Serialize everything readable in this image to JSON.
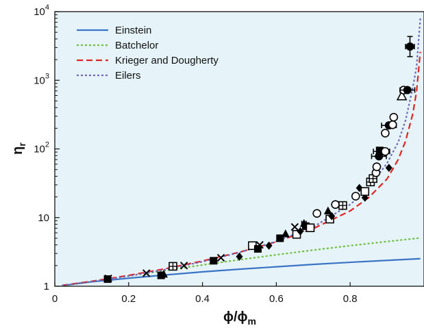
{
  "chart_data": {
    "type": "scatter",
    "xlabel": "ϕ/ϕm",
    "ylabel": "ηr",
    "xlim": [
      0,
      1.0
    ],
    "ylim": [
      1,
      10000
    ],
    "yscale": "log",
    "grid": false,
    "legend_position": "top-left",
    "colors": {
      "background": "#e6f3f8",
      "Einstein": "#3a74c4",
      "Batchelor": "#6cbf3a",
      "Krieger and Dougherty": "#e02424",
      "Eilers": "#6f67b7"
    },
    "x_ticks": [
      "0",
      "0.2",
      "0.4",
      "0.6",
      "0.8"
    ],
    "y_ticks": [
      {
        "base": "1",
        "exp": ""
      },
      {
        "base": "10",
        "exp": ""
      },
      {
        "base": "10",
        "exp": "2"
      },
      {
        "base": "10",
        "exp": "3"
      },
      {
        "base": "10",
        "exp": "4"
      }
    ],
    "series": [
      {
        "name": "Einstein",
        "style": "solid",
        "x": [
          0.02,
          0.1,
          0.2,
          0.3,
          0.4,
          0.5,
          0.6,
          0.7,
          0.8,
          0.9,
          0.99
        ],
        "y": [
          1.02,
          1.16,
          1.31,
          1.46,
          1.62,
          1.77,
          1.92,
          2.08,
          2.23,
          2.38,
          2.52
        ]
      },
      {
        "name": "Batchelor",
        "style": "dotted",
        "x": [
          0.02,
          0.1,
          0.2,
          0.3,
          0.4,
          0.5,
          0.6,
          0.7,
          0.8,
          0.9,
          0.99
        ],
        "y": [
          1.02,
          1.18,
          1.41,
          1.7,
          2.04,
          2.43,
          2.87,
          3.36,
          3.9,
          4.48,
          5.05
        ]
      },
      {
        "name": "Krieger and Dougherty",
        "style": "dashed",
        "x": [
          0.02,
          0.1,
          0.2,
          0.3,
          0.4,
          0.5,
          0.6,
          0.7,
          0.8,
          0.85,
          0.9,
          0.93,
          0.95,
          0.97,
          0.98,
          0.99
        ],
        "y": [
          1.03,
          1.18,
          1.44,
          1.8,
          2.33,
          3.13,
          4.43,
          6.9,
          12.5,
          19.5,
          36.6,
          70,
          130,
          330,
          700,
          2600
        ]
      },
      {
        "name": "Eilers",
        "style": "dotted",
        "x": [
          0.02,
          0.1,
          0.2,
          0.3,
          0.4,
          0.5,
          0.6,
          0.7,
          0.8,
          0.85,
          0.9,
          0.93,
          0.95,
          0.97,
          0.98,
          0.99
        ],
        "y": [
          1.03,
          1.17,
          1.41,
          1.75,
          2.28,
          3.1,
          4.5,
          7.3,
          15.5,
          27,
          62,
          125,
          260,
          800,
          1600,
          8000
        ]
      }
    ],
    "points": [
      {
        "marker": "filled-square",
        "x": 0.143,
        "y": 1.27
      },
      {
        "marker": "cross",
        "x": 0.145,
        "y": 1.3
      },
      {
        "marker": "cross",
        "x": 0.248,
        "y": 1.55
      },
      {
        "marker": "filled-square",
        "x": 0.288,
        "y": 1.44
      },
      {
        "marker": "filled-triangle",
        "x": 0.295,
        "y": 1.5
      },
      {
        "marker": "square-cross",
        "x": 0.32,
        "y": 1.95
      },
      {
        "marker": "cross",
        "x": 0.35,
        "y": 2.0
      },
      {
        "marker": "filled-square",
        "x": 0.43,
        "y": 2.35
      },
      {
        "marker": "cross",
        "x": 0.45,
        "y": 2.6
      },
      {
        "marker": "filled-diamond",
        "x": 0.5,
        "y": 2.7
      },
      {
        "marker": "open-square",
        "x": 0.535,
        "y": 3.9
      },
      {
        "marker": "filled-square",
        "x": 0.55,
        "y": 3.5
      },
      {
        "marker": "cross",
        "x": 0.555,
        "y": 4.0
      },
      {
        "marker": "filled-diamond",
        "x": 0.58,
        "y": 3.9
      },
      {
        "marker": "filled-square",
        "x": 0.61,
        "y": 5.0
      },
      {
        "marker": "filled-triangle",
        "x": 0.625,
        "y": 5.8
      },
      {
        "marker": "cross",
        "x": 0.65,
        "y": 7.3
      },
      {
        "marker": "open-square",
        "x": 0.655,
        "y": 5.7
      },
      {
        "marker": "filled-diamond",
        "x": 0.665,
        "y": 6.3
      },
      {
        "marker": "filled-triangle",
        "x": 0.675,
        "y": 8.2,
        "err": 0.006
      },
      {
        "marker": "filled-square",
        "x": 0.68,
        "y": 7.5
      },
      {
        "marker": "open-square",
        "x": 0.692,
        "y": 7.1
      },
      {
        "marker": "open-circle",
        "x": 0.71,
        "y": 11.5
      },
      {
        "marker": "filled-triangle",
        "x": 0.74,
        "y": 12.5
      },
      {
        "marker": "open-square",
        "x": 0.745,
        "y": 9.5
      },
      {
        "marker": "filled-diamond",
        "x": 0.75,
        "y": 10.5
      },
      {
        "marker": "open-circle",
        "x": 0.76,
        "y": 15.5
      },
      {
        "marker": "square-cross",
        "x": 0.78,
        "y": 15.0
      },
      {
        "marker": "filled-diamond",
        "x": 0.825,
        "y": 27
      },
      {
        "marker": "filled-diamond",
        "x": 0.84,
        "y": 19.5
      },
      {
        "marker": "open-circle",
        "x": 0.815,
        "y": 20.5
      },
      {
        "marker": "open-square",
        "x": 0.84,
        "y": 24
      },
      {
        "marker": "square-cross",
        "x": 0.855,
        "y": 33
      },
      {
        "marker": "square-cross",
        "x": 0.862,
        "y": 37
      },
      {
        "marker": "open-circle",
        "x": 0.87,
        "y": 45
      },
      {
        "marker": "open-circle",
        "x": 0.872,
        "y": 55
      },
      {
        "marker": "filled-circle",
        "x": 0.878,
        "y": 78,
        "err": 0.02
      },
      {
        "marker": "filled-square",
        "x": 0.88,
        "y": 95
      },
      {
        "marker": "filled-circle",
        "x": 0.885,
        "y": 92,
        "err": 0.022
      },
      {
        "marker": "open-circle",
        "x": 0.895,
        "y": 92
      },
      {
        "marker": "filled-diamond",
        "x": 0.905,
        "y": 53
      },
      {
        "marker": "filled-circle",
        "x": 0.905,
        "y": 220,
        "err": 0.02
      },
      {
        "marker": "open-circle",
        "x": 0.895,
        "y": 170
      },
      {
        "marker": "open-circle",
        "x": 0.915,
        "y": 225
      },
      {
        "marker": "open-circle",
        "x": 0.918,
        "y": 290
      },
      {
        "marker": "open-triangle",
        "x": 0.94,
        "y": 590
      },
      {
        "marker": "open-circle",
        "x": 0.945,
        "y": 720
      },
      {
        "marker": "filled-circle",
        "x": 0.955,
        "y": 720,
        "err": 0.02
      },
      {
        "marker": "filled-circle",
        "x": 0.962,
        "y": 3100,
        "err": 0.012
      }
    ]
  }
}
